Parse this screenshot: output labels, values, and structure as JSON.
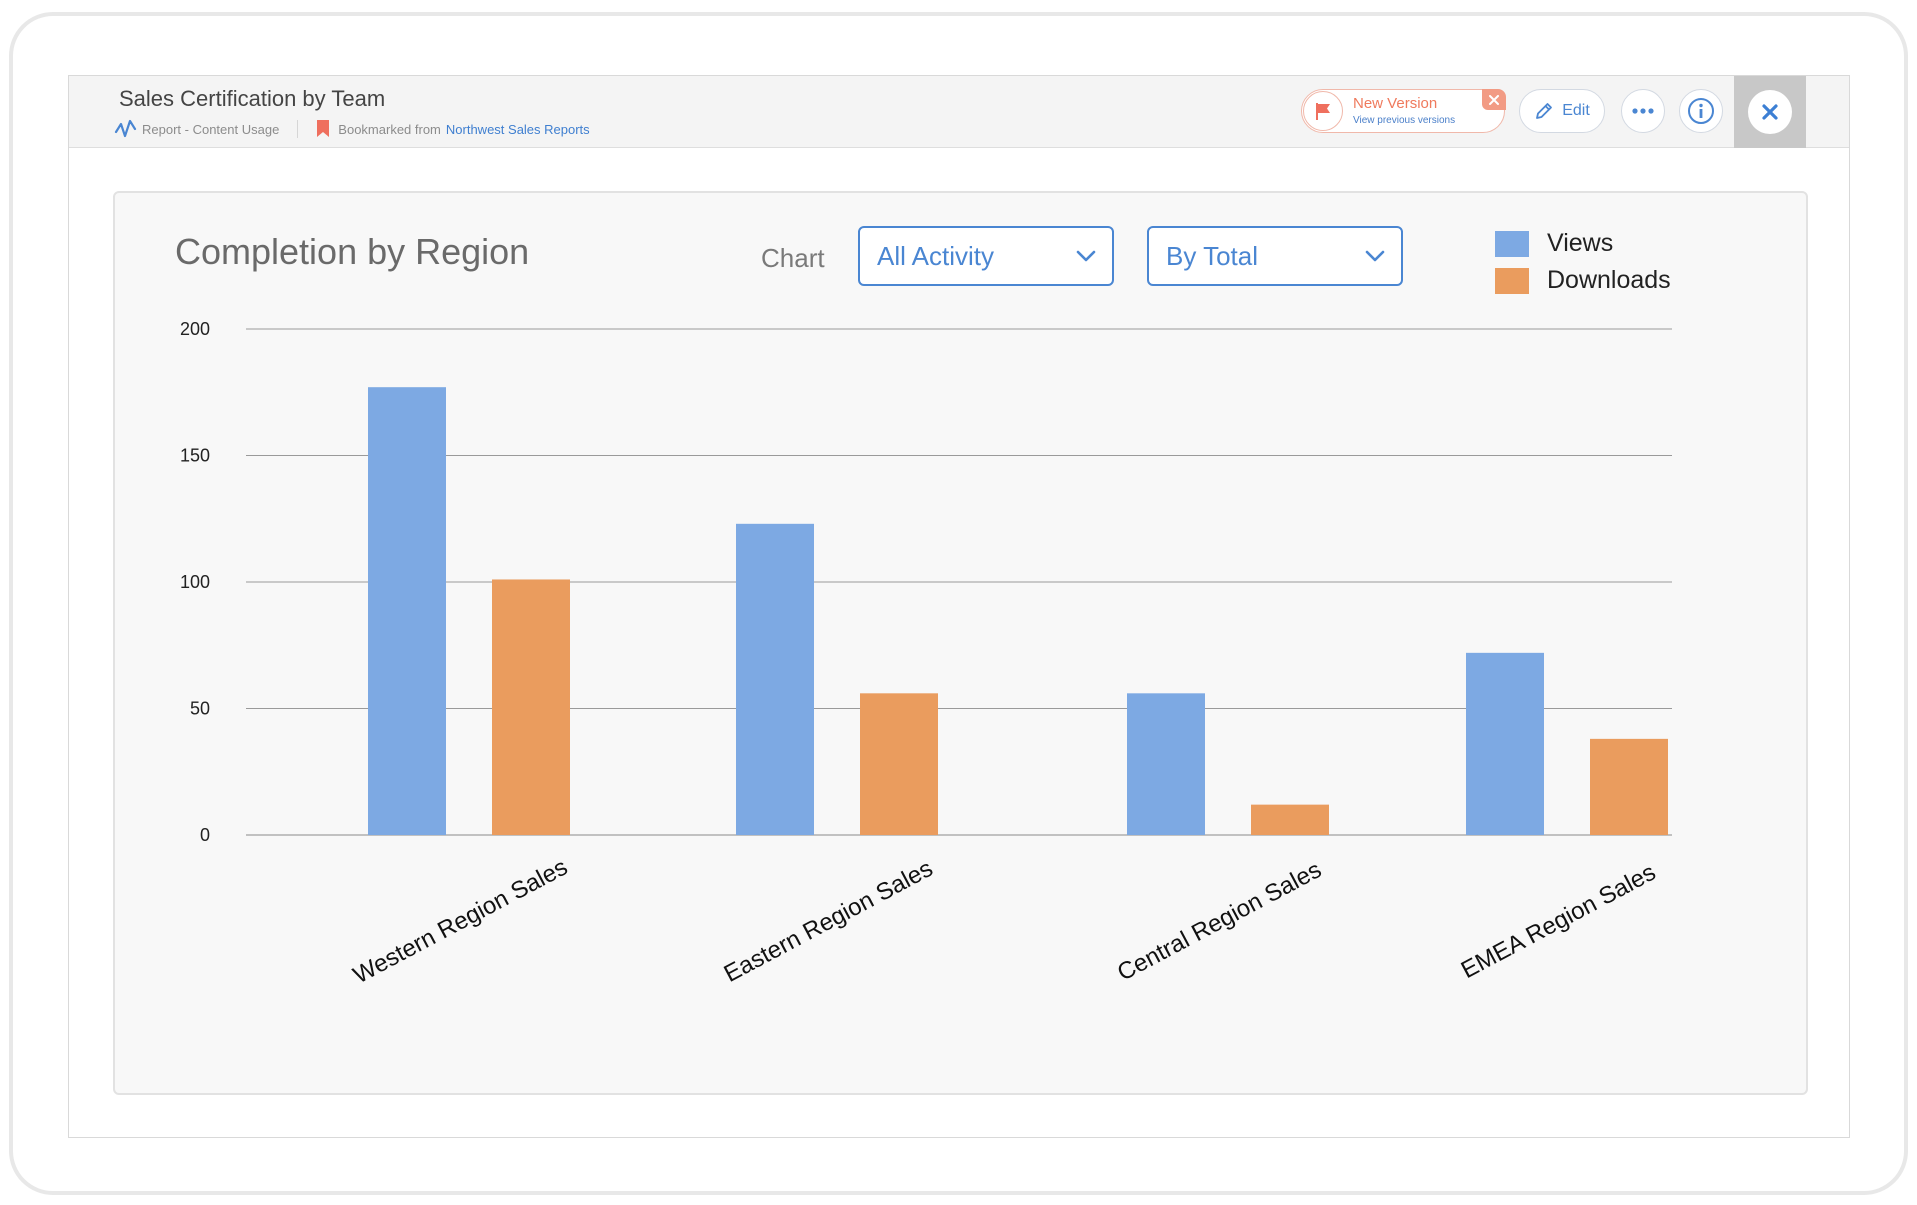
{
  "header": {
    "title": "Sales Certification by Team",
    "report_label": "Report - Content Usage",
    "bookmark_prefix": "Bookmarked from",
    "bookmark_link": "Northwest Sales Reports",
    "new_version_title": "New Version",
    "new_version_sub": "View previous versions",
    "edit_label": "Edit"
  },
  "controls": {
    "chart_label": "Chart",
    "activity_selected": "All Activity",
    "aggregate_selected": "By Total"
  },
  "colors": {
    "views": "#7da9e3",
    "downloads": "#ea9c5e",
    "accent": "#4a86d2",
    "new_version": "#ef7a5d"
  },
  "chart_data": {
    "type": "bar",
    "title": "Completion by Region",
    "categories": [
      "Western Region Sales",
      "Eastern Region Sales",
      "Central Region Sales",
      "EMEA Region Sales"
    ],
    "series": [
      {
        "name": "Views",
        "values": [
          177,
          123,
          56,
          72
        ]
      },
      {
        "name": "Downloads",
        "values": [
          101,
          56,
          12,
          38
        ]
      }
    ],
    "ylim": [
      0,
      200
    ],
    "yticks": [
      0,
      50,
      100,
      150,
      200
    ],
    "grid": true,
    "legend": "top-right"
  }
}
